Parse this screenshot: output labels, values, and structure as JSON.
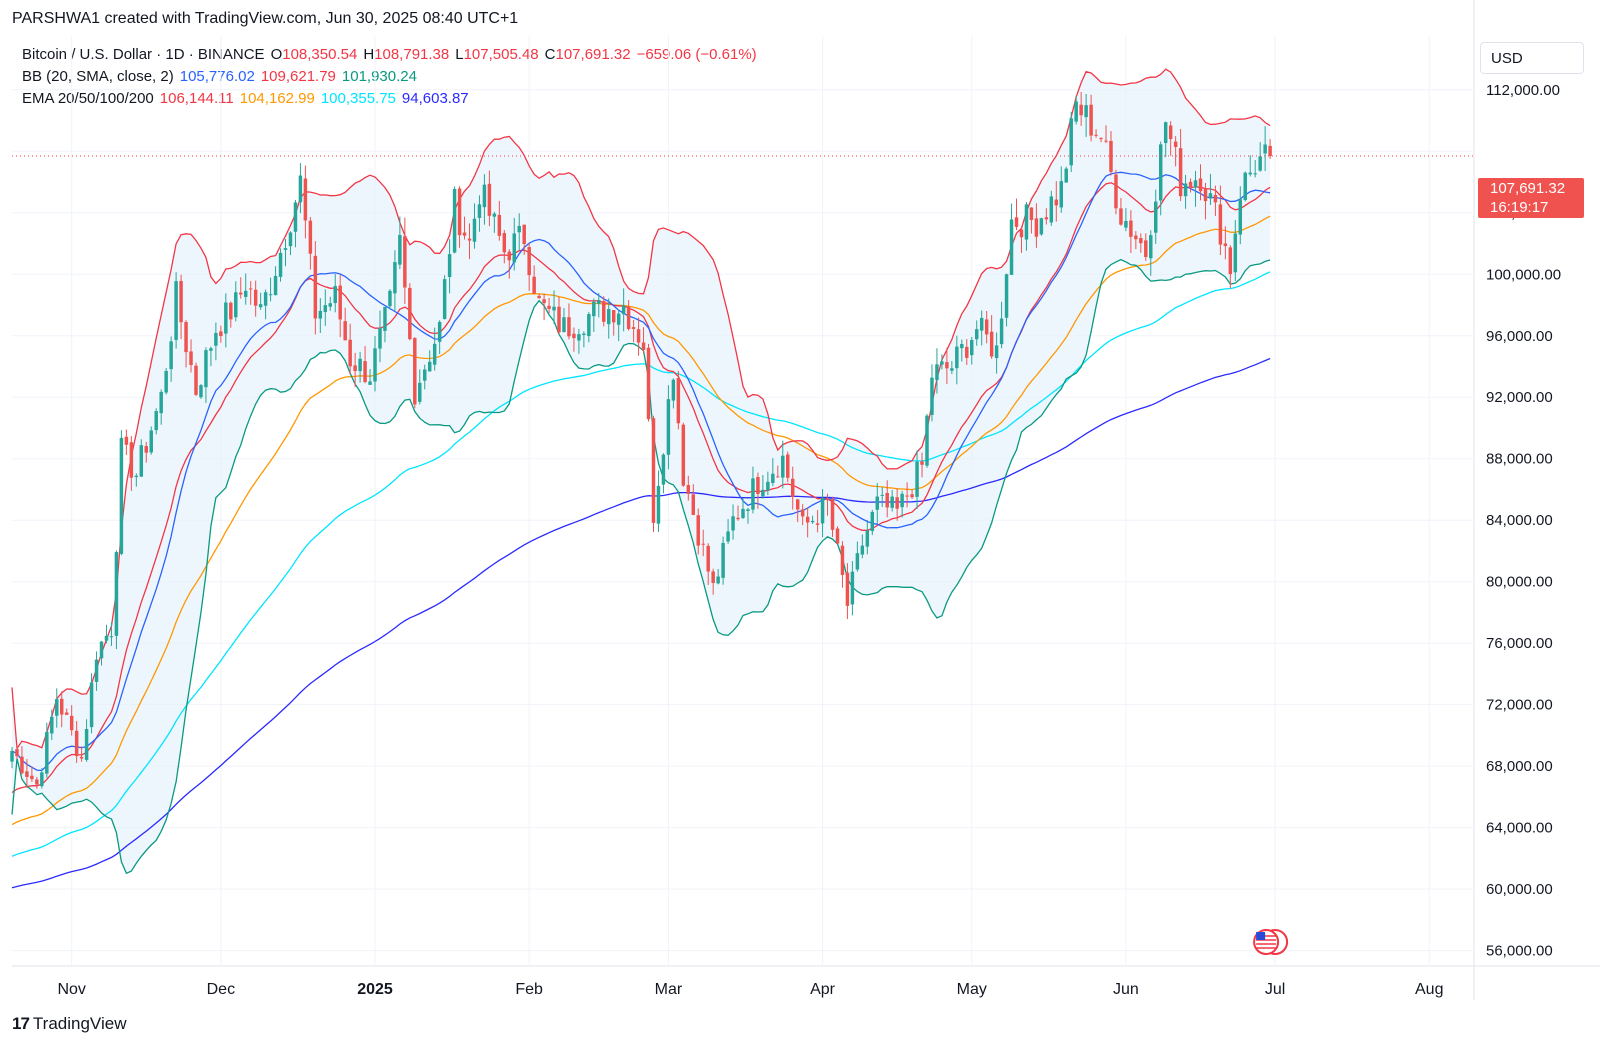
{
  "header": {
    "attribution": "PARSHWA1 created with TradingView.com, Jun 30, 2025 08:40 UTC+1"
  },
  "legend": {
    "symbol": "Bitcoin / U.S. Dollar · 1D · BINANCE",
    "open_label": "O",
    "open": "108,350.54",
    "high_label": "H",
    "high": "108,791.38",
    "low_label": "L",
    "low": "107,505.48",
    "close_label": "C",
    "close": "107,691.32",
    "change": "−659.06 (−0.61%)",
    "bb_label": "BB (20, SMA, close, 2)",
    "bb_basis": "105,776.02",
    "bb_upper": "109,621.79",
    "bb_lower": "101,930.24",
    "ema_label": "EMA 20/50/100/200",
    "ema20": "106,144.11",
    "ema50": "104,162.99",
    "ema100": "100,355.75",
    "ema200": "94,603.87"
  },
  "price_axis": {
    "currency": "USD",
    "last_price": "107,691.32",
    "countdown": "16:19:17"
  },
  "footer": {
    "brand": "TradingView",
    "logo_glyph": "17"
  },
  "colors": {
    "up": "#26a69a",
    "down": "#ef5350",
    "bb_basis": "#2962ff",
    "bb_upper": "#f23645",
    "bb_lower": "#089981",
    "ema20": "#f23645",
    "ema50": "#ff9800",
    "ema100": "#00e5ff",
    "ema200": "#2a2aff",
    "band_fill": "#e3f0fb"
  },
  "chart_data": {
    "type": "candlestick",
    "title": "Bitcoin / U.S. Dollar · 1D · BINANCE",
    "x_ticks": [
      {
        "label": "Nov",
        "date": "2024-11-01"
      },
      {
        "label": "Dec",
        "date": "2024-12-01"
      },
      {
        "label": "2025",
        "date": "2025-01-01"
      },
      {
        "label": "Feb",
        "date": "2025-02-01"
      },
      {
        "label": "Mar",
        "date": "2025-03-01"
      },
      {
        "label": "Apr",
        "date": "2025-04-01"
      },
      {
        "label": "May",
        "date": "2025-05-01"
      },
      {
        "label": "Jun",
        "date": "2025-06-01"
      },
      {
        "label": "Jul",
        "date": "2025-07-01"
      },
      {
        "label": "Aug",
        "date": "2025-08-01"
      }
    ],
    "x_range": [
      "2024-10-20",
      "2025-08-10"
    ],
    "y_ticks": [
      56000,
      60000,
      64000,
      68000,
      72000,
      76000,
      80000,
      84000,
      88000,
      92000,
      96000,
      100000,
      104000,
      108000,
      112000
    ],
    "y_tick_labels": [
      "56,000.00",
      "60,000.00",
      "64,000.00",
      "68,000.00",
      "72,000.00",
      "76,000.00",
      "80,000.00",
      "84,000.00",
      "88,000.00",
      "92,000.00",
      "96,000.00",
      "100,000.00",
      "104,000.00",
      "",
      "112,000.00"
    ],
    "ylim": [
      55000,
      115500
    ],
    "last_price": 107691.32,
    "start_date": "2024-10-20",
    "end_date": "2025-06-30",
    "close_anchors": [
      [
        "2024-10-20",
        69000
      ],
      [
        "2024-10-25",
        66800
      ],
      [
        "2024-10-29",
        72500
      ],
      [
        "2024-11-03",
        68500
      ],
      [
        "2024-11-06",
        75500
      ],
      [
        "2024-11-09",
        77000
      ],
      [
        "2024-11-11",
        88500
      ],
      [
        "2024-11-14",
        87000
      ],
      [
        "2024-11-19",
        92000
      ],
      [
        "2024-11-22",
        98500
      ],
      [
        "2024-11-26",
        92500
      ],
      [
        "2024-11-30",
        96500
      ],
      [
        "2024-12-04",
        98000
      ],
      [
        "2024-12-06",
        99500
      ],
      [
        "2024-12-09",
        97500
      ],
      [
        "2024-12-13",
        101500
      ],
      [
        "2024-12-17",
        106000
      ],
      [
        "2024-12-20",
        97500
      ],
      [
        "2024-12-24",
        98500
      ],
      [
        "2024-12-27",
        94500
      ],
      [
        "2024-12-31",
        93500
      ],
      [
        "2025-01-04",
        98000
      ],
      [
        "2025-01-06",
        102000
      ],
      [
        "2025-01-09",
        92500
      ],
      [
        "2025-01-14",
        96500
      ],
      [
        "2025-01-17",
        104500
      ],
      [
        "2025-01-20",
        102000
      ],
      [
        "2025-01-22",
        105500
      ],
      [
        "2025-01-27",
        101500
      ],
      [
        "2025-01-31",
        102500
      ],
      [
        "2025-02-03",
        98000
      ],
      [
        "2025-02-08",
        96500
      ],
      [
        "2025-02-14",
        97500
      ],
      [
        "2025-02-20",
        98000
      ],
      [
        "2025-02-24",
        95500
      ],
      [
        "2025-02-26",
        84500
      ],
      [
        "2025-03-02",
        94000
      ],
      [
        "2025-03-04",
        87000
      ],
      [
        "2025-03-10",
        79500
      ],
      [
        "2025-03-14",
        84000
      ],
      [
        "2025-03-19",
        86500
      ],
      [
        "2025-03-24",
        88000
      ],
      [
        "2025-03-28",
        83500
      ],
      [
        "2025-04-02",
        85000
      ],
      [
        "2025-04-06",
        78500
      ],
      [
        "2025-04-09",
        82500
      ],
      [
        "2025-04-12",
        85000
      ],
      [
        "2025-04-16",
        84500
      ],
      [
        "2025-04-21",
        87500
      ],
      [
        "2025-04-23",
        93500
      ],
      [
        "2025-04-27",
        94000
      ],
      [
        "2025-05-02",
        96500
      ],
      [
        "2025-05-06",
        95000
      ],
      [
        "2025-05-09",
        103500
      ],
      [
        "2025-05-14",
        103500
      ],
      [
        "2025-05-19",
        105500
      ],
      [
        "2025-05-22",
        111000
      ],
      [
        "2025-05-27",
        109000
      ],
      [
        "2025-05-31",
        104000
      ],
      [
        "2025-06-05",
        101500
      ],
      [
        "2025-06-09",
        110000
      ],
      [
        "2025-06-12",
        106000
      ],
      [
        "2025-06-16",
        106500
      ],
      [
        "2025-06-20",
        103000
      ],
      [
        "2025-06-22",
        100500
      ],
      [
        "2025-06-24",
        105500
      ],
      [
        "2025-06-27",
        107200
      ],
      [
        "2025-06-30",
        107691
      ]
    ]
  }
}
